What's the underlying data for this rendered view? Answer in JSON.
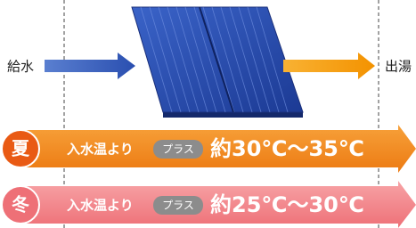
{
  "labels": {
    "inlet": "給水",
    "outlet": "出湯"
  },
  "rows": [
    {
      "season": "夏",
      "prefix": "入水温より",
      "badge": "プラス",
      "range": "約30℃〜35℃"
    },
    {
      "season": "冬",
      "prefix": "入水温より",
      "badge": "プラス",
      "range": "約25℃〜30℃"
    }
  ]
}
